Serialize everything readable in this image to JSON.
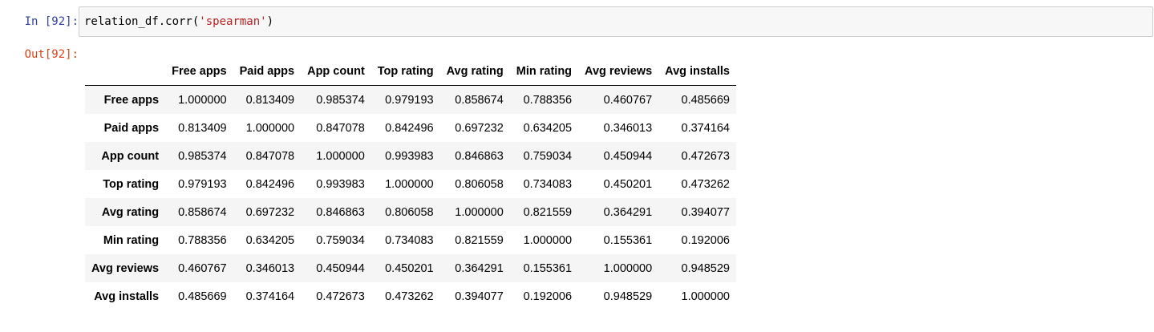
{
  "cell": {
    "in_prompt": "In [92]:",
    "out_prompt": "Out[92]:",
    "code": {
      "prefix": "relation_df.corr(",
      "string": "'spearman'",
      "suffix": ")"
    }
  },
  "table": {
    "columns": [
      "Free apps",
      "Paid apps",
      "App count",
      "Top rating",
      "Avg rating",
      "Min rating",
      "Avg reviews",
      "Avg installs"
    ],
    "rows": [
      {
        "label": "Free apps",
        "values": [
          "1.000000",
          "0.813409",
          "0.985374",
          "0.979193",
          "0.858674",
          "0.788356",
          "0.460767",
          "0.485669"
        ]
      },
      {
        "label": "Paid apps",
        "values": [
          "0.813409",
          "1.000000",
          "0.847078",
          "0.842496",
          "0.697232",
          "0.634205",
          "0.346013",
          "0.374164"
        ]
      },
      {
        "label": "App count",
        "values": [
          "0.985374",
          "0.847078",
          "1.000000",
          "0.993983",
          "0.846863",
          "0.759034",
          "0.450944",
          "0.472673"
        ]
      },
      {
        "label": "Top rating",
        "values": [
          "0.979193",
          "0.842496",
          "0.993983",
          "1.000000",
          "0.806058",
          "0.734083",
          "0.450201",
          "0.473262"
        ]
      },
      {
        "label": "Avg rating",
        "values": [
          "0.858674",
          "0.697232",
          "0.846863",
          "0.806058",
          "1.000000",
          "0.821559",
          "0.364291",
          "0.394077"
        ]
      },
      {
        "label": "Min rating",
        "values": [
          "0.788356",
          "0.634205",
          "0.759034",
          "0.734083",
          "0.821559",
          "1.000000",
          "0.155361",
          "0.192006"
        ]
      },
      {
        "label": "Avg reviews",
        "values": [
          "0.460767",
          "0.346013",
          "0.450944",
          "0.450201",
          "0.364291",
          "0.155361",
          "1.000000",
          "0.948529"
        ]
      },
      {
        "label": "Avg installs",
        "values": [
          "0.485669",
          "0.374164",
          "0.472673",
          "0.473262",
          "0.394077",
          "0.192006",
          "0.948529",
          "1.000000"
        ]
      }
    ]
  },
  "colors": {
    "in_prompt": "#303f9f",
    "out_prompt": "#d84315",
    "code_string": "#ba2121",
    "input_background": "#f7f7f7",
    "row_stripe": "#f5f5f5"
  }
}
